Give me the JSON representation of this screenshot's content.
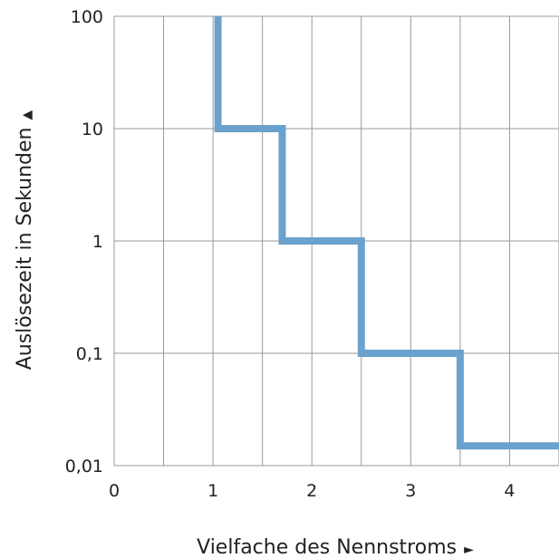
{
  "chart_data": {
    "type": "line",
    "title": "",
    "xlabel": "Vielfache des Nennstroms",
    "ylabel": "Auslösezeit in Sekunden",
    "xlabel_arrow": "►",
    "ylabel_arrow": "▲",
    "x_scale": "linear",
    "y_scale": "log",
    "xlim": [
      0,
      4.5
    ],
    "ylim": [
      0.01,
      100
    ],
    "x_ticks": [
      0,
      1,
      2,
      3,
      4
    ],
    "x_tick_labels": [
      "0",
      "1",
      "2",
      "3",
      "4"
    ],
    "y_ticks": [
      100,
      10,
      1,
      0.1,
      0.01
    ],
    "y_tick_labels": [
      "100",
      "10",
      "1",
      "0,1",
      "0,01"
    ],
    "grid": true,
    "step_series": {
      "color": "#6aa2cd",
      "x": [
        1.05,
        1.05,
        1.7,
        1.7,
        2.5,
        2.5,
        3.5,
        3.5,
        4.5
      ],
      "y": [
        100,
        10,
        10,
        1,
        1,
        0.1,
        0.1,
        0.015,
        0.015
      ]
    }
  }
}
